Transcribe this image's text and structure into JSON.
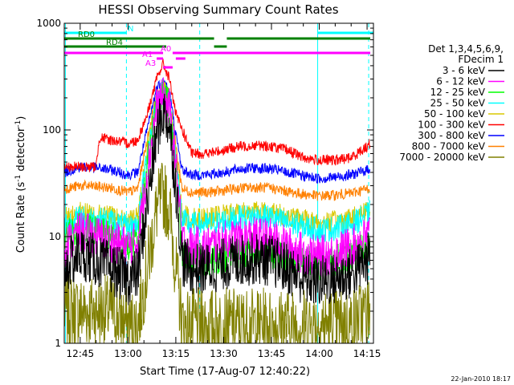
{
  "footer": {
    "date_stamp": "22-Jan-2010 18:17"
  },
  "colors": {
    "cyan": "#00ffff",
    "green": "#008000",
    "magenta": "#ff00ff",
    "black": "#000000",
    "red": "#ff0000",
    "blue": "#0000ff",
    "lime": "#00ff00",
    "yellow": "#d8c800",
    "orange": "#ff8000",
    "olive": "#808000"
  },
  "chart_data": {
    "type": "line",
    "title": "HESSI Observing Summary Count Rates",
    "xlabel": "Start Time (17-Aug-07 12:40:22)",
    "ylabel_main": "Count Rate (s",
    "ylabel_sup1": "-1",
    "ylabel_mid": " detector",
    "ylabel_sup2": "-1",
    "ylabel_end": ")",
    "y_log": true,
    "xlim": [
      "12:40",
      "14:17"
    ],
    "ylim": [
      1,
      1000
    ],
    "x_ticks": [
      "12:45",
      "13:00",
      "13:15",
      "13:30",
      "13:45",
      "14:00",
      "14:15"
    ],
    "y_ticks": [
      {
        "value": 1,
        "label": "1"
      },
      {
        "value": 10,
        "label": "10"
      },
      {
        "value": 100,
        "label": "100"
      },
      {
        "value": 1000,
        "label": "1000"
      }
    ],
    "vlines_cyan": [
      "12:40:22",
      "12:59:30",
      "13:22:30",
      "13:59:30",
      "14:15:30"
    ],
    "legend": {
      "header1": "Det 1,3,4,5,6,9,",
      "header2": "FDecim 1",
      "entries": [
        {
          "label": "3 - 6 keV",
          "color": "#000000"
        },
        {
          "label": "6 - 12 keV",
          "color": "#ff00ff"
        },
        {
          "label": "12 - 25 keV",
          "color": "#00ff00"
        },
        {
          "label": "25 - 50 keV",
          "color": "#00ffff"
        },
        {
          "label": "50 - 100 keV",
          "color": "#d8c800"
        },
        {
          "label": "100 - 300 keV",
          "color": "#ff0000"
        },
        {
          "label": "300 - 800 keV",
          "color": "#0000ff"
        },
        {
          "label": "800 - 7000 keV",
          "color": "#ff8000"
        },
        {
          "label": "7000 - 20000 keV",
          "color": "#808000"
        }
      ]
    },
    "flags": [
      {
        "label": "N",
        "color": "#00ffff",
        "segments": [
          [
            "12:40",
            "12:59:30"
          ],
          [
            "13:59:30",
            "14:17"
          ]
        ]
      },
      {
        "label": "RD0",
        "color": "#008000",
        "segments": [
          [
            "12:40",
            "13:27"
          ],
          [
            "13:31",
            "14:16"
          ]
        ]
      },
      {
        "label": "RD4",
        "color": "#008000",
        "segments": [
          [
            "12:40",
            "13:12"
          ],
          [
            "13:27",
            "13:31"
          ]
        ]
      },
      {
        "label": "A0",
        "color": "#ff00ff",
        "segments": [
          [
            "12:40",
            "13:11"
          ],
          [
            "13:14",
            "14:16"
          ]
        ]
      },
      {
        "label": "A1",
        "color": "#ff00ff",
        "segments": [
          [
            "13:09",
            "13:11"
          ],
          [
            "13:15",
            "13:18"
          ]
        ]
      },
      {
        "label": "A3",
        "color": "#ff00ff",
        "segments": [
          [
            "13:11",
            "13:14"
          ]
        ]
      }
    ],
    "series": [
      {
        "name": "3 - 6 keV",
        "color": "#000000",
        "noise": 0.25,
        "points": [
          [
            "12:40",
            5
          ],
          [
            "12:45",
            7
          ],
          [
            "12:50",
            6
          ],
          [
            "12:55",
            5
          ],
          [
            "13:00",
            4
          ],
          [
            "13:03",
            4.5
          ],
          [
            "13:06",
            20
          ],
          [
            "13:09",
            90
          ],
          [
            "13:11",
            150
          ],
          [
            "13:13",
            110
          ],
          [
            "13:15",
            30
          ],
          [
            "13:17",
            6
          ],
          [
            "13:20",
            5
          ],
          [
            "13:25",
            5
          ],
          [
            "13:30",
            5.5
          ],
          [
            "13:35",
            6
          ],
          [
            "13:40",
            6.2
          ],
          [
            "13:45",
            6
          ],
          [
            "13:50",
            5
          ],
          [
            "13:55",
            4
          ],
          [
            "14:00",
            3.8
          ],
          [
            "14:05",
            4
          ],
          [
            "14:10",
            4.5
          ],
          [
            "14:15",
            6
          ],
          [
            "14:16",
            7
          ]
        ]
      },
      {
        "name": "6 - 12 keV",
        "color": "#ff00ff",
        "noise": 0.2,
        "points": [
          [
            "12:40",
            8
          ],
          [
            "12:45",
            11
          ],
          [
            "12:50",
            10
          ],
          [
            "12:55",
            9
          ],
          [
            "13:00",
            8
          ],
          [
            "13:03",
            9
          ],
          [
            "13:06",
            40
          ],
          [
            "13:09",
            160
          ],
          [
            "13:11",
            200
          ],
          [
            "13:13",
            160
          ],
          [
            "13:15",
            50
          ],
          [
            "13:17",
            9
          ],
          [
            "13:20",
            8
          ],
          [
            "13:25",
            8
          ],
          [
            "13:30",
            9
          ],
          [
            "13:35",
            9.5
          ],
          [
            "13:40",
            9.8
          ],
          [
            "13:45",
            9.5
          ],
          [
            "13:50",
            8
          ],
          [
            "13:55",
            7
          ],
          [
            "14:00",
            6.5
          ],
          [
            "14:05",
            7
          ],
          [
            "14:10",
            8
          ],
          [
            "14:15",
            10
          ],
          [
            "14:16",
            11
          ]
        ]
      },
      {
        "name": "12 - 25 keV",
        "color": "#00ff00",
        "noise": 0.15,
        "points": [
          [
            "12:40",
            10
          ],
          [
            "12:45",
            12
          ],
          [
            "12:50",
            11
          ],
          [
            "12:55",
            10
          ],
          [
            "13:00",
            8
          ],
          [
            "13:03",
            9
          ],
          [
            "13:06",
            50
          ],
          [
            "13:09",
            180
          ],
          [
            "13:11",
            210
          ],
          [
            "13:13",
            170
          ],
          [
            "13:15",
            50
          ],
          [
            "13:17",
            7
          ],
          [
            "13:20",
            6
          ],
          [
            "13:25",
            6
          ],
          [
            "13:30",
            6.5
          ],
          [
            "13:35",
            7
          ],
          [
            "13:40",
            7.2
          ],
          [
            "13:45",
            7
          ],
          [
            "13:50",
            6.5
          ],
          [
            "13:55",
            6
          ],
          [
            "14:00",
            5.5
          ],
          [
            "14:05",
            6
          ],
          [
            "14:10",
            6.5
          ],
          [
            "14:15",
            8
          ],
          [
            "14:16",
            9
          ]
        ]
      },
      {
        "name": "25 - 50 keV",
        "color": "#00ffff",
        "noise": 0.12,
        "points": [
          [
            "12:40",
            13
          ],
          [
            "12:45",
            15
          ],
          [
            "12:50",
            14.5
          ],
          [
            "12:55",
            14
          ],
          [
            "13:00",
            12
          ],
          [
            "13:03",
            13
          ],
          [
            "13:06",
            60
          ],
          [
            "13:09",
            190
          ],
          [
            "13:11",
            230
          ],
          [
            "13:13",
            180
          ],
          [
            "13:15",
            55
          ],
          [
            "13:17",
            14
          ],
          [
            "13:20",
            13
          ],
          [
            "13:25",
            13
          ],
          [
            "13:30",
            14
          ],
          [
            "13:35",
            15
          ],
          [
            "13:40",
            15.5
          ],
          [
            "13:45",
            15
          ],
          [
            "13:50",
            13.5
          ],
          [
            "13:55",
            12.5
          ],
          [
            "14:00",
            11.5
          ],
          [
            "14:05",
            12
          ],
          [
            "14:10",
            13
          ],
          [
            "14:15",
            16
          ],
          [
            "14:16",
            17
          ]
        ]
      },
      {
        "name": "50 - 100 keV",
        "color": "#d8c800",
        "noise": 0.1,
        "points": [
          [
            "12:40",
            15
          ],
          [
            "12:45",
            17
          ],
          [
            "12:50",
            16
          ],
          [
            "12:55",
            15.5
          ],
          [
            "13:00",
            14
          ],
          [
            "13:03",
            15
          ],
          [
            "13:06",
            65
          ],
          [
            "13:09",
            200
          ],
          [
            "13:11",
            240
          ],
          [
            "13:13",
            190
          ],
          [
            "13:15",
            60
          ],
          [
            "13:17",
            16
          ],
          [
            "13:20",
            15
          ],
          [
            "13:25",
            15
          ],
          [
            "13:30",
            16
          ],
          [
            "13:35",
            17
          ],
          [
            "13:40",
            17.5
          ],
          [
            "13:45",
            17
          ],
          [
            "13:50",
            15.5
          ],
          [
            "13:55",
            14.5
          ],
          [
            "14:00",
            13.5
          ],
          [
            "14:05",
            14
          ],
          [
            "14:10",
            15
          ],
          [
            "14:15",
            18
          ],
          [
            "14:16",
            19
          ]
        ]
      },
      {
        "name": "100 - 300 keV",
        "color": "#ff0000",
        "noise": 0.05,
        "points": [
          [
            "12:40",
            45
          ],
          [
            "12:50",
            45
          ],
          [
            "12:51",
            85
          ],
          [
            "12:55",
            80
          ],
          [
            "13:00",
            75
          ],
          [
            "13:03",
            80
          ],
          [
            "13:06",
            140
          ],
          [
            "13:09",
            300
          ],
          [
            "13:11",
            420
          ],
          [
            "13:13",
            300
          ],
          [
            "13:15",
            140
          ],
          [
            "13:18",
            85
          ],
          [
            "13:20",
            60
          ],
          [
            "13:22",
            60
          ],
          [
            "13:25",
            60
          ],
          [
            "13:30",
            65
          ],
          [
            "13:35",
            70
          ],
          [
            "13:40",
            72
          ],
          [
            "13:45",
            70
          ],
          [
            "13:50",
            65
          ],
          [
            "13:55",
            55
          ],
          [
            "14:00",
            52
          ],
          [
            "14:05",
            52
          ],
          [
            "14:10",
            55
          ],
          [
            "14:15",
            70
          ],
          [
            "14:16",
            75
          ]
        ]
      },
      {
        "name": "300 - 800 keV",
        "color": "#0000ff",
        "noise": 0.05,
        "points": [
          [
            "12:40",
            40
          ],
          [
            "12:45",
            45
          ],
          [
            "12:50",
            44
          ],
          [
            "12:55",
            42
          ],
          [
            "13:00",
            38
          ],
          [
            "13:03",
            40
          ],
          [
            "13:06",
            100
          ],
          [
            "13:09",
            250
          ],
          [
            "13:11",
            290
          ],
          [
            "13:13",
            230
          ],
          [
            "13:15",
            90
          ],
          [
            "13:17",
            42
          ],
          [
            "13:20",
            38
          ],
          [
            "13:25",
            38
          ],
          [
            "13:30",
            40
          ],
          [
            "13:35",
            43
          ],
          [
            "13:40",
            44
          ],
          [
            "13:45",
            43
          ],
          [
            "13:50",
            40
          ],
          [
            "13:55",
            37
          ],
          [
            "14:00",
            35
          ],
          [
            "14:05",
            36
          ],
          [
            "14:10",
            38
          ],
          [
            "14:15",
            42
          ],
          [
            "14:16",
            44
          ]
        ]
      },
      {
        "name": "800 - 7000 keV",
        "color": "#ff8000",
        "noise": 0.05,
        "points": [
          [
            "12:40",
            28
          ],
          [
            "12:45",
            30
          ],
          [
            "12:50",
            29.5
          ],
          [
            "12:55",
            28.5
          ],
          [
            "13:00",
            26
          ],
          [
            "13:03",
            28
          ],
          [
            "13:06",
            80
          ],
          [
            "13:09",
            220
          ],
          [
            "13:11",
            260
          ],
          [
            "13:13",
            200
          ],
          [
            "13:15",
            70
          ],
          [
            "13:17",
            28
          ],
          [
            "13:20",
            26
          ],
          [
            "13:25",
            26
          ],
          [
            "13:30",
            27
          ],
          [
            "13:35",
            28.5
          ],
          [
            "13:40",
            29
          ],
          [
            "13:45",
            28.5
          ],
          [
            "13:50",
            26.5
          ],
          [
            "13:55",
            25
          ],
          [
            "14:00",
            24
          ],
          [
            "14:05",
            24.5
          ],
          [
            "14:10",
            25.5
          ],
          [
            "14:15",
            28
          ],
          [
            "14:16",
            29
          ]
        ]
      },
      {
        "name": "7000 - 20000 keV",
        "color": "#808000",
        "noise": 0.35,
        "floor": 1,
        "points": [
          [
            "12:40",
            2
          ],
          [
            "12:45",
            2
          ],
          [
            "12:50",
            2
          ],
          [
            "12:55",
            2
          ],
          [
            "13:00",
            1.5
          ],
          [
            "13:03",
            1.5
          ],
          [
            "13:06",
            5
          ],
          [
            "13:09",
            18
          ],
          [
            "13:11",
            25
          ],
          [
            "13:13",
            18
          ],
          [
            "13:15",
            5
          ],
          [
            "13:17",
            1.5
          ],
          [
            "13:20",
            1.5
          ],
          [
            "13:25",
            1.5
          ],
          [
            "13:30",
            1.5
          ],
          [
            "13:35",
            1.5
          ],
          [
            "13:40",
            1.5
          ],
          [
            "13:45",
            1.5
          ],
          [
            "13:50",
            1.5
          ],
          [
            "13:55",
            1.5
          ],
          [
            "14:00",
            1.5
          ],
          [
            "14:05",
            1.5
          ],
          [
            "14:10",
            1.5
          ],
          [
            "14:15",
            2
          ],
          [
            "14:16",
            2
          ]
        ]
      }
    ]
  }
}
